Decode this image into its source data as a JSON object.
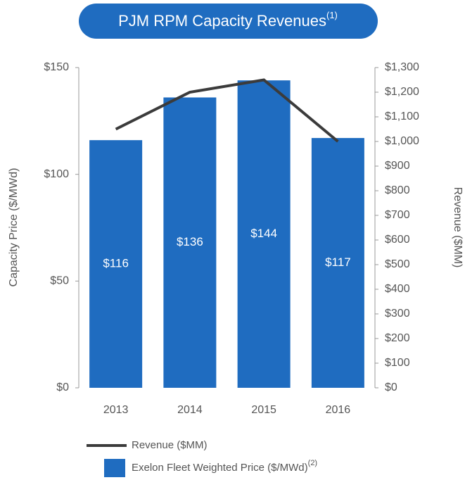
{
  "chart_data": {
    "type": "bar",
    "title": "PJM RPM Capacity Revenues",
    "title_superscript": "(1)",
    "ylabel": "Capacity Price ($/MWd)",
    "y2label": "Revenue ($MM)",
    "categories": [
      "2013",
      "2014",
      "2015",
      "2016"
    ],
    "series": [
      {
        "name": "Exelon Fleet Weighted Price ($/MWd)",
        "name_superscript": "(2)",
        "type": "bar",
        "color": "#1f6cc0",
        "values": [
          116,
          136,
          144,
          117
        ],
        "value_labels": [
          "$116",
          "$136",
          "$144",
          "$117"
        ]
      },
      {
        "name": "Revenue ($MM)",
        "type": "line",
        "axis": "y2",
        "color": "#3b3b3b",
        "values": [
          1050,
          1200,
          1250,
          1000
        ]
      }
    ],
    "ylim": [
      0,
      150
    ],
    "yticks": [
      {
        "value": 0,
        "label": "$0"
      },
      {
        "value": 50,
        "label": "$50"
      },
      {
        "value": 100,
        "label": "$100"
      },
      {
        "value": 150,
        "label": "$150"
      }
    ],
    "y2lim": [
      0,
      1300
    ],
    "y2ticks": [
      {
        "value": 0,
        "label": "$0"
      },
      {
        "value": 100,
        "label": "$100"
      },
      {
        "value": 200,
        "label": "$200"
      },
      {
        "value": 300,
        "label": "$300"
      },
      {
        "value": 400,
        "label": "$400"
      },
      {
        "value": 500,
        "label": "$500"
      },
      {
        "value": 600,
        "label": "$600"
      },
      {
        "value": 700,
        "label": "$700"
      },
      {
        "value": 800,
        "label": "$800"
      },
      {
        "value": 900,
        "label": "$900"
      },
      {
        "value": 1000,
        "label": "$1,000"
      },
      {
        "value": 1100,
        "label": "$1,100"
      },
      {
        "value": 1200,
        "label": "$1,200"
      },
      {
        "value": 1300,
        "label": "$1,300"
      }
    ],
    "title_color": "#1f6cc0"
  }
}
